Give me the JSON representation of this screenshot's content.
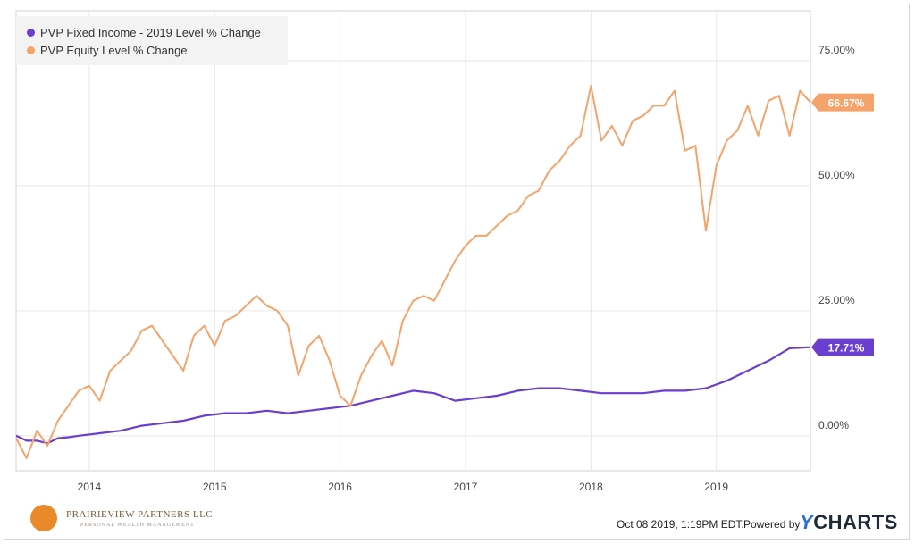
{
  "chart_data": {
    "type": "line",
    "xlim": [
      "2013-06",
      "2019-10"
    ],
    "ylim": [
      -0.07,
      0.85
    ],
    "x_ticks": [
      "2014",
      "2015",
      "2016",
      "2017",
      "2018",
      "2019"
    ],
    "y_ticks": [
      "0.00%",
      "25.00%",
      "50.00%",
      "75.00%"
    ],
    "grid": true,
    "legend_position": "top-left",
    "series": [
      {
        "name": "PVP Fixed Income - 2019 Level % Change",
        "color": "#6a3fd0",
        "end_label": "17.71%",
        "points": [
          [
            "2013-06",
            -0.0
          ],
          [
            "2013-07",
            -0.01
          ],
          [
            "2013-08",
            -0.01
          ],
          [
            "2013-09",
            -0.015
          ],
          [
            "2013-10",
            -0.005
          ],
          [
            "2013-11",
            -0.003
          ],
          [
            "2013-12",
            0.0
          ],
          [
            "2014-02",
            0.005
          ],
          [
            "2014-04",
            0.01
          ],
          [
            "2014-06",
            0.02
          ],
          [
            "2014-08",
            0.025
          ],
          [
            "2014-10",
            0.03
          ],
          [
            "2014-12",
            0.04
          ],
          [
            "2015-02",
            0.045
          ],
          [
            "2015-04",
            0.045
          ],
          [
            "2015-06",
            0.05
          ],
          [
            "2015-08",
            0.045
          ],
          [
            "2015-10",
            0.05
          ],
          [
            "2015-12",
            0.055
          ],
          [
            "2016-02",
            0.06
          ],
          [
            "2016-04",
            0.07
          ],
          [
            "2016-06",
            0.08
          ],
          [
            "2016-08",
            0.09
          ],
          [
            "2016-10",
            0.085
          ],
          [
            "2016-12",
            0.07
          ],
          [
            "2017-02",
            0.075
          ],
          [
            "2017-04",
            0.08
          ],
          [
            "2017-06",
            0.09
          ],
          [
            "2017-08",
            0.095
          ],
          [
            "2017-10",
            0.095
          ],
          [
            "2017-12",
            0.09
          ],
          [
            "2018-02",
            0.085
          ],
          [
            "2018-04",
            0.085
          ],
          [
            "2018-06",
            0.085
          ],
          [
            "2018-08",
            0.09
          ],
          [
            "2018-10",
            0.09
          ],
          [
            "2018-12",
            0.095
          ],
          [
            "2019-02",
            0.11
          ],
          [
            "2019-04",
            0.13
          ],
          [
            "2019-06",
            0.15
          ],
          [
            "2019-08",
            0.175
          ],
          [
            "2019-10",
            0.1771
          ]
        ]
      },
      {
        "name": "PVP Equity Level % Change",
        "color": "#f5a36a",
        "end_label": "66.67%",
        "points": [
          [
            "2013-06",
            -0.005
          ],
          [
            "2013-07",
            -0.045
          ],
          [
            "2013-08",
            0.01
          ],
          [
            "2013-09",
            -0.02
          ],
          [
            "2013-10",
            0.03
          ],
          [
            "2013-11",
            0.06
          ],
          [
            "2013-12",
            0.09
          ],
          [
            "2014-01",
            0.1
          ],
          [
            "2014-02",
            0.07
          ],
          [
            "2014-03",
            0.13
          ],
          [
            "2014-04",
            0.15
          ],
          [
            "2014-05",
            0.17
          ],
          [
            "2014-06",
            0.21
          ],
          [
            "2014-07",
            0.22
          ],
          [
            "2014-08",
            0.19
          ],
          [
            "2014-09",
            0.16
          ],
          [
            "2014-10",
            0.13
          ],
          [
            "2014-11",
            0.2
          ],
          [
            "2014-12",
            0.22
          ],
          [
            "2015-01",
            0.18
          ],
          [
            "2015-02",
            0.23
          ],
          [
            "2015-03",
            0.24
          ],
          [
            "2015-04",
            0.26
          ],
          [
            "2015-05",
            0.28
          ],
          [
            "2015-06",
            0.26
          ],
          [
            "2015-07",
            0.25
          ],
          [
            "2015-08",
            0.22
          ],
          [
            "2015-09",
            0.12
          ],
          [
            "2015-10",
            0.18
          ],
          [
            "2015-11",
            0.2
          ],
          [
            "2015-12",
            0.15
          ],
          [
            "2016-01",
            0.08
          ],
          [
            "2016-02",
            0.06
          ],
          [
            "2016-03",
            0.12
          ],
          [
            "2016-04",
            0.16
          ],
          [
            "2016-05",
            0.19
          ],
          [
            "2016-06",
            0.14
          ],
          [
            "2016-07",
            0.23
          ],
          [
            "2016-08",
            0.27
          ],
          [
            "2016-09",
            0.28
          ],
          [
            "2016-10",
            0.27
          ],
          [
            "2016-11",
            0.31
          ],
          [
            "2016-12",
            0.35
          ],
          [
            "2017-01",
            0.38
          ],
          [
            "2017-02",
            0.4
          ],
          [
            "2017-03",
            0.4
          ],
          [
            "2017-04",
            0.42
          ],
          [
            "2017-05",
            0.44
          ],
          [
            "2017-06",
            0.45
          ],
          [
            "2017-07",
            0.48
          ],
          [
            "2017-08",
            0.49
          ],
          [
            "2017-09",
            0.53
          ],
          [
            "2017-10",
            0.55
          ],
          [
            "2017-11",
            0.58
          ],
          [
            "2017-12",
            0.6
          ],
          [
            "2018-01",
            0.7
          ],
          [
            "2018-02",
            0.59
          ],
          [
            "2018-03",
            0.62
          ],
          [
            "2018-04",
            0.58
          ],
          [
            "2018-05",
            0.63
          ],
          [
            "2018-06",
            0.64
          ],
          [
            "2018-07",
            0.66
          ],
          [
            "2018-08",
            0.66
          ],
          [
            "2018-09",
            0.69
          ],
          [
            "2018-10",
            0.57
          ],
          [
            "2018-11",
            0.58
          ],
          [
            "2018-12",
            0.41
          ],
          [
            "2019-01",
            0.54
          ],
          [
            "2019-02",
            0.59
          ],
          [
            "2019-03",
            0.61
          ],
          [
            "2019-04",
            0.66
          ],
          [
            "2019-05",
            0.6
          ],
          [
            "2019-06",
            0.67
          ],
          [
            "2019-07",
            0.68
          ],
          [
            "2019-08",
            0.6
          ],
          [
            "2019-09",
            0.69
          ],
          [
            "2019-10",
            0.6667
          ]
        ]
      }
    ]
  },
  "footer": {
    "timestamp": "Oct 08 2019, 1:19PM EDT.",
    "powered_by": "Powered by",
    "brand_y": "Y",
    "brand_rest": "CHARTS",
    "logo_text": "PRAIRIEVIEW PARTNERS LLC",
    "logo_sub": "PERSONAL WEALTH MANAGEMENT"
  }
}
